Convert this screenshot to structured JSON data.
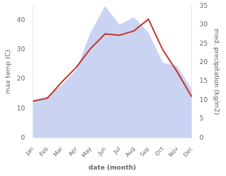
{
  "chart_data": {
    "type": "line",
    "xlabel": "date (month)",
    "ylabel": "max temp (C)",
    "y2label": "med. precipitation (kg/m2)",
    "categories": [
      "Jan",
      "Feb",
      "Mar",
      "Apr",
      "May",
      "Jun",
      "Jul",
      "Aug",
      "Sep",
      "Oct",
      "Nov",
      "Dec"
    ],
    "series": [
      {
        "type": "line",
        "color": "#c0392b",
        "values": [
          12.5,
          13.5,
          19.0,
          24.0,
          30.5,
          35.5,
          35.0,
          36.5,
          40.5,
          30.0,
          22.5,
          14.0
        ]
      },
      {
        "type": "area",
        "color": "#b8c4ee",
        "axis": "y2",
        "values": [
          10,
          11,
          14,
          18,
          28,
          35,
          30,
          32,
          28,
          20,
          19,
          13
        ]
      }
    ],
    "ylim": [
      0,
      45
    ],
    "yticks": [
      0,
      10,
      20,
      30,
      40
    ],
    "y2lim": [
      0,
      35
    ],
    "y2ticks": [
      0,
      5,
      10,
      15,
      20,
      25,
      30,
      35
    ],
    "grid": false
  }
}
